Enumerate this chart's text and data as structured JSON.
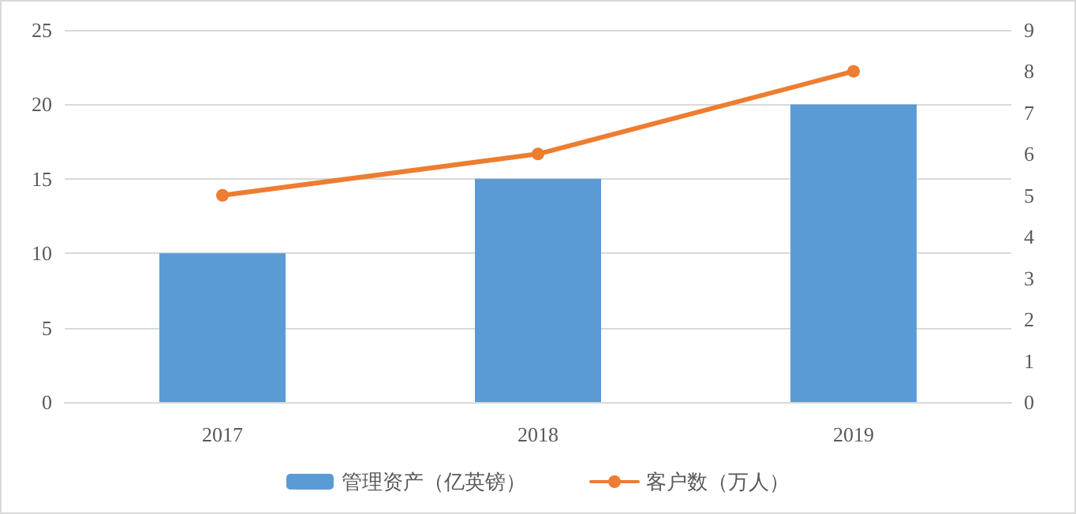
{
  "chart_data": {
    "type": "bar",
    "categories": [
      "2017",
      "2018",
      "2019"
    ],
    "series": [
      {
        "name": "管理资产（亿英镑）",
        "color": "#5b9bd5",
        "values": [
          10,
          15,
          20
        ]
      },
      {
        "name": "客户数（万人）",
        "type": "line",
        "axis": "y2",
        "color": "#ed7d31",
        "values": [
          5,
          6,
          8
        ]
      }
    ],
    "ylim": [
      0,
      25
    ],
    "yticks": [
      0,
      5,
      10,
      15,
      20,
      25
    ],
    "y2lim": [
      0,
      9
    ],
    "y2ticks": [
      0,
      1,
      2,
      3,
      4,
      5,
      6,
      7,
      8,
      9
    ],
    "grid": "y",
    "legend": "bottom",
    "marker": "circle"
  }
}
